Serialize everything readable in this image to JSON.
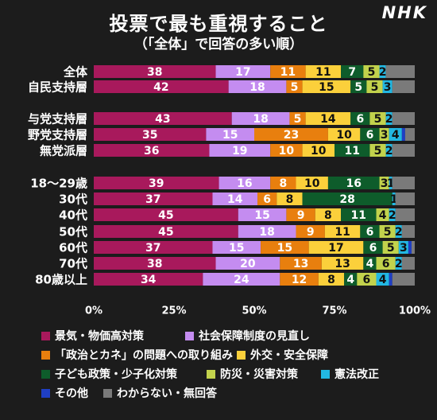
{
  "header": {
    "title": "投票で最も重視すること",
    "subtitle": "（「全体」で回答の多い順）",
    "logo": "NHK"
  },
  "colors": {
    "background": "#1c1c1c",
    "series": [
      "#a8195c",
      "#c48cf0",
      "#e87f0e",
      "#fbd03b",
      "#0e5c2b",
      "#c2d24c",
      "#22b7e2",
      "#1f3fc4",
      "#7a7a7a"
    ],
    "label_dark": "#111111",
    "label_light": "#ffffff"
  },
  "chart_data": {
    "type": "bar",
    "orientation": "horizontal",
    "stacked": "percent",
    "title": "投票で最も重視すること",
    "subtitle": "（「全体」で回答の多い順）",
    "xlim": [
      0,
      100
    ],
    "xticks": [
      "0%",
      "25%",
      "50%",
      "75%",
      "100%"
    ],
    "grid": false,
    "legend_position": "bottom",
    "groups": [
      {
        "categories": [
          "全体",
          "自民支持層"
        ]
      },
      {
        "categories": [
          "与党支持層",
          "野党支持層",
          "無党派層"
        ]
      },
      {
        "categories": [
          "18～29歳",
          "30代",
          "40代",
          "50代",
          "60代",
          "70代",
          "80歳以上"
        ]
      }
    ],
    "categories": [
      "全体",
      "自民支持層",
      "与党支持層",
      "野党支持層",
      "無党派層",
      "18～29歳",
      "30代",
      "40代",
      "50代",
      "60代",
      "70代",
      "80歳以上"
    ],
    "series": [
      {
        "name": "景気・物価高対策",
        "values": [
          38,
          42,
          43,
          35,
          36,
          39,
          37,
          45,
          45,
          37,
          38,
          34
        ]
      },
      {
        "name": "社会保障制度の見直し",
        "values": [
          17,
          18,
          18,
          15,
          19,
          16,
          14,
          15,
          18,
          15,
          20,
          24
        ]
      },
      {
        "name": "「政治とカネ」の問題への取り組み",
        "values": [
          11,
          5,
          5,
          23,
          10,
          8,
          6,
          9,
          9,
          15,
          13,
          12
        ]
      },
      {
        "name": "外交・安全保障",
        "values": [
          11,
          15,
          14,
          10,
          10,
          10,
          8,
          8,
          11,
          17,
          13,
          8
        ]
      },
      {
        "name": "子ども政策・少子化対策",
        "values": [
          7,
          5,
          6,
          6,
          11,
          16,
          28,
          11,
          6,
          6,
          4,
          4
        ]
      },
      {
        "name": "防災・災害対策",
        "values": [
          5,
          5,
          5,
          3,
          5,
          3,
          0,
          4,
          5,
          5,
          6,
          6
        ]
      },
      {
        "name": "憲法改正",
        "values": [
          2,
          3,
          2,
          4,
          2,
          1,
          1,
          2,
          2,
          3,
          2,
          4
        ]
      },
      {
        "name": "その他",
        "values": [
          0,
          0,
          0,
          1,
          0,
          0,
          0,
          0,
          0,
          1,
          0,
          1
        ]
      },
      {
        "name": "わからない・無回答",
        "values": [
          9,
          7,
          7,
          3,
          7,
          7,
          6,
          6,
          4,
          1,
          4,
          7
        ]
      }
    ],
    "labels_shown": [
      [
        "38",
        "17",
        "11",
        "11",
        "7",
        "5",
        "2",
        "",
        ""
      ],
      [
        "42",
        "18",
        "5",
        "15",
        "5",
        "5",
        "3",
        "",
        ""
      ],
      [
        "43",
        "18",
        "5",
        "14",
        "6",
        "5",
        "2",
        "",
        ""
      ],
      [
        "35",
        "15",
        "23",
        "10",
        "6",
        "3",
        "4",
        "",
        ""
      ],
      [
        "36",
        "19",
        "10",
        "10",
        "11",
        "5",
        "2",
        "",
        ""
      ],
      [
        "39",
        "16",
        "8",
        "10",
        "16",
        "3",
        "1",
        "",
        ""
      ],
      [
        "37",
        "14",
        "6",
        "8",
        "28",
        "",
        "1",
        "",
        ""
      ],
      [
        "45",
        "15",
        "9",
        "8",
        "11",
        "4",
        "2",
        "",
        ""
      ],
      [
        "45",
        "18",
        "9",
        "11",
        "6",
        "5",
        "2",
        "",
        ""
      ],
      [
        "37",
        "15",
        "15",
        "17",
        "6",
        "5",
        "3",
        "",
        ""
      ],
      [
        "38",
        "20",
        "13",
        "13",
        "4",
        "6",
        "2",
        "",
        ""
      ],
      [
        "34",
        "24",
        "12",
        "8",
        "4",
        "6",
        "4",
        "",
        ""
      ]
    ]
  }
}
